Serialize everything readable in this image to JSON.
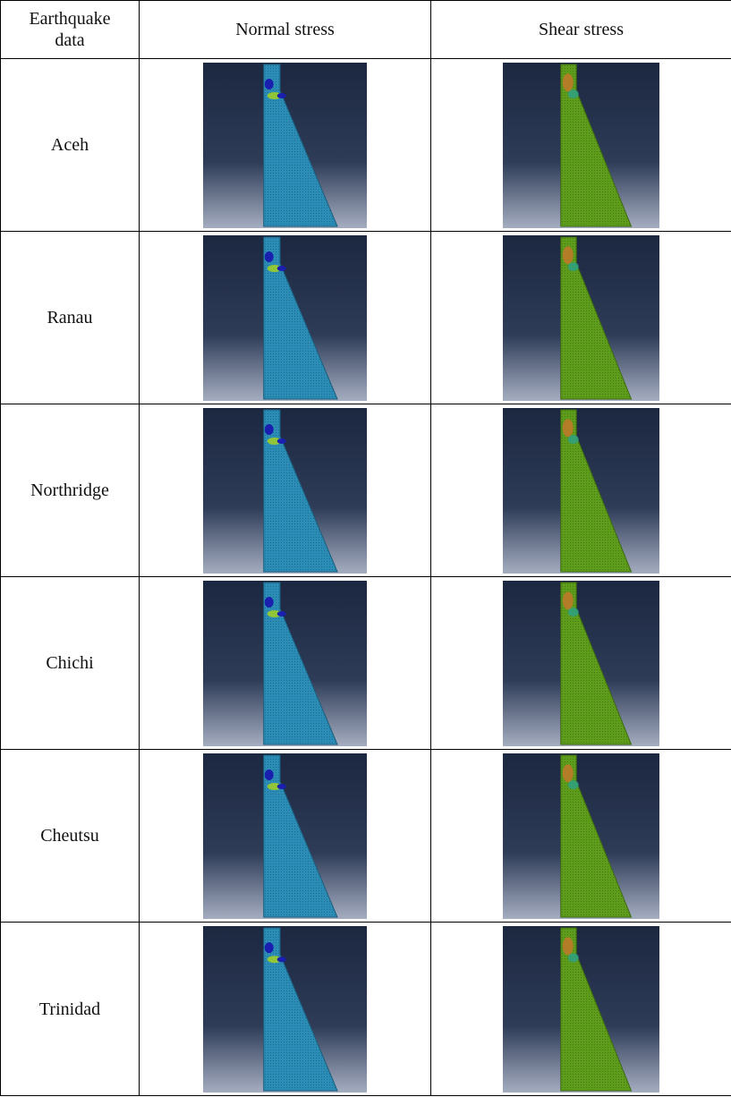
{
  "table": {
    "header": [
      "Earthquake data",
      "Normal stress",
      "Shear stress"
    ],
    "rows": [
      "Aceh",
      "Ranau",
      "Northridge",
      "Chichi",
      "Cheutsu",
      "Trinidad"
    ]
  }
}
